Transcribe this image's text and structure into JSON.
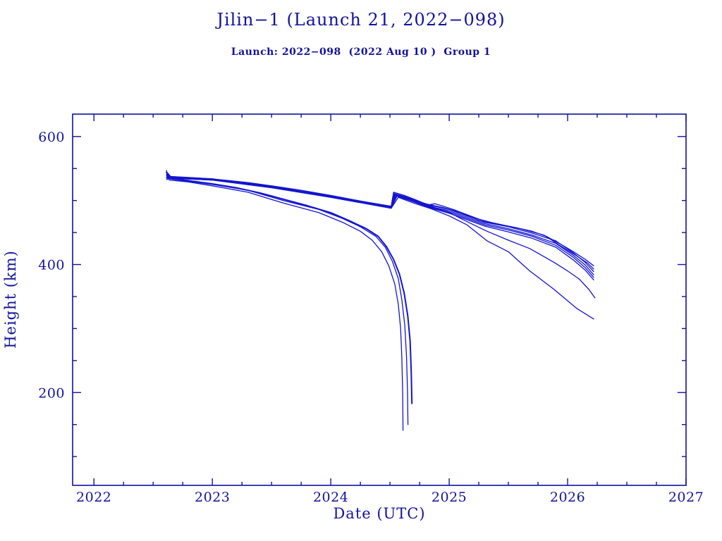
{
  "header": {
    "title": "Jilin−1 (Launch 21, 2022−098)",
    "subtitle": "Launch: 2022−098  (2022 Aug 10 )  Group 1"
  },
  "colors": {
    "background": "#ffffff",
    "text_and_frame": "#12129e",
    "data_line": "#1414d0"
  },
  "chart_data": {
    "type": "line",
    "title": "Jilin−1 (Launch 21, 2022−098)",
    "subtitle": "Launch: 2022−098  (2022 Aug 10 )  Group 1",
    "xlabel": "Date (UTC)",
    "ylabel": "Height (km)",
    "x_range": [
      2021.82,
      2027.0
    ],
    "y_range": [
      55,
      635
    ],
    "x_major_ticks": [
      2022,
      2023,
      2024,
      2025,
      2026,
      2027
    ],
    "x_minor_step": 0.25,
    "y_major_ticks": [
      200,
      400,
      600
    ],
    "y_minor_step": 50,
    "grid": false,
    "legend": "none",
    "description": "Orbital height decay of Jilin-1 Launch 21 satellites: one sub-group decays and reenters around 2024.6-2024.7; a second sub-group is boosted from ~490 km to ~510 km near 2024.5 and decays to 315-400 km by 2026.2.",
    "series": [
      {
        "name": "boosted-sat-1",
        "weight": 1.3,
        "points": [
          [
            2022.613,
            547
          ],
          [
            2022.62,
            538
          ],
          [
            2022.7,
            537
          ],
          [
            2022.9,
            535
          ],
          [
            2023.1,
            532
          ],
          [
            2023.3,
            528
          ],
          [
            2023.5,
            523
          ],
          [
            2023.75,
            516
          ],
          [
            2024.0,
            508
          ],
          [
            2024.2,
            501
          ],
          [
            2024.35,
            496
          ],
          [
            2024.51,
            491
          ],
          [
            2024.53,
            513
          ],
          [
            2024.62,
            508
          ],
          [
            2024.72,
            501
          ],
          [
            2024.82,
            493
          ],
          [
            2024.88,
            495
          ],
          [
            2024.95,
            491
          ],
          [
            2025.05,
            485
          ],
          [
            2025.15,
            478
          ],
          [
            2025.25,
            471
          ],
          [
            2025.35,
            466
          ],
          [
            2025.45,
            462
          ],
          [
            2025.58,
            457
          ],
          [
            2025.7,
            452
          ],
          [
            2025.82,
            444
          ],
          [
            2025.95,
            431
          ],
          [
            2026.05,
            420
          ],
          [
            2026.15,
            408
          ],
          [
            2026.22,
            398
          ]
        ]
      },
      {
        "name": "boosted-sat-2",
        "weight": 1.3,
        "points": [
          [
            2022.613,
            545
          ],
          [
            2022.65,
            537
          ],
          [
            2023.0,
            534
          ],
          [
            2023.5,
            522
          ],
          [
            2024.0,
            507
          ],
          [
            2024.51,
            490
          ],
          [
            2024.535,
            511
          ],
          [
            2024.65,
            505
          ],
          [
            2024.8,
            495
          ],
          [
            2024.95,
            489
          ],
          [
            2025.1,
            481
          ],
          [
            2025.25,
            469
          ],
          [
            2025.4,
            463
          ],
          [
            2025.6,
            456
          ],
          [
            2025.8,
            446
          ],
          [
            2025.95,
            428
          ],
          [
            2026.08,
            413
          ],
          [
            2026.17,
            402
          ],
          [
            2026.22,
            393
          ]
        ]
      },
      {
        "name": "boosted-sat-3",
        "weight": 1.3,
        "points": [
          [
            2022.613,
            543
          ],
          [
            2022.65,
            536
          ],
          [
            2023.0,
            533
          ],
          [
            2023.5,
            522
          ],
          [
            2024.0,
            507
          ],
          [
            2024.51,
            490
          ],
          [
            2024.54,
            510
          ],
          [
            2024.68,
            502
          ],
          [
            2024.85,
            492
          ],
          [
            2025.0,
            486
          ],
          [
            2025.15,
            476
          ],
          [
            2025.3,
            466
          ],
          [
            2025.5,
            459
          ],
          [
            2025.7,
            449
          ],
          [
            2025.9,
            437
          ],
          [
            2026.05,
            418
          ],
          [
            2026.15,
            403
          ],
          [
            2026.22,
            389
          ]
        ]
      },
      {
        "name": "boosted-sat-4",
        "weight": 1.3,
        "points": [
          [
            2022.613,
            541
          ],
          [
            2022.65,
            536
          ],
          [
            2023.0,
            533
          ],
          [
            2023.5,
            521
          ],
          [
            2024.0,
            506
          ],
          [
            2024.51,
            489
          ],
          [
            2024.545,
            509
          ],
          [
            2024.7,
            500
          ],
          [
            2024.85,
            490
          ],
          [
            2025.0,
            484
          ],
          [
            2025.15,
            474
          ],
          [
            2025.3,
            464
          ],
          [
            2025.5,
            456
          ],
          [
            2025.7,
            446
          ],
          [
            2025.9,
            433
          ],
          [
            2026.05,
            414
          ],
          [
            2026.15,
            399
          ],
          [
            2026.22,
            384
          ]
        ]
      },
      {
        "name": "boosted-sat-5",
        "weight": 1.3,
        "points": [
          [
            2022.613,
            539
          ],
          [
            2022.65,
            535
          ],
          [
            2023.0,
            532
          ],
          [
            2023.5,
            521
          ],
          [
            2024.0,
            506
          ],
          [
            2024.51,
            489
          ],
          [
            2024.55,
            508
          ],
          [
            2024.7,
            499
          ],
          [
            2024.85,
            489
          ],
          [
            2025.0,
            482
          ],
          [
            2025.15,
            472
          ],
          [
            2025.3,
            462
          ],
          [
            2025.5,
            454
          ],
          [
            2025.7,
            444
          ],
          [
            2025.9,
            430
          ],
          [
            2026.05,
            411
          ],
          [
            2026.15,
            395
          ],
          [
            2026.22,
            380
          ]
        ]
      },
      {
        "name": "boosted-sat-6",
        "weight": 1.3,
        "points": [
          [
            2022.613,
            537
          ],
          [
            2022.65,
            535
          ],
          [
            2023.0,
            532
          ],
          [
            2023.5,
            520
          ],
          [
            2024.0,
            505
          ],
          [
            2024.51,
            488
          ],
          [
            2024.555,
            507
          ],
          [
            2024.7,
            498
          ],
          [
            2024.85,
            488
          ],
          [
            2025.0,
            480
          ],
          [
            2025.15,
            470
          ],
          [
            2025.3,
            460
          ],
          [
            2025.5,
            451
          ],
          [
            2025.7,
            441
          ],
          [
            2025.9,
            427
          ],
          [
            2026.05,
            407
          ],
          [
            2026.15,
            391
          ],
          [
            2026.22,
            376
          ]
        ]
      },
      {
        "name": "boosted-sat-7",
        "weight": 1.3,
        "points": [
          [
            2022.613,
            535
          ],
          [
            2022.65,
            536
          ],
          [
            2023.0,
            533
          ],
          [
            2023.5,
            521
          ],
          [
            2024.0,
            506
          ],
          [
            2024.51,
            489
          ],
          [
            2024.56,
            507
          ],
          [
            2024.7,
            499
          ],
          [
            2024.85,
            491
          ],
          [
            2025.0,
            481
          ],
          [
            2025.15,
            467
          ],
          [
            2025.32,
            452
          ],
          [
            2025.5,
            438
          ],
          [
            2025.68,
            425
          ],
          [
            2025.88,
            404
          ],
          [
            2026.0,
            390
          ],
          [
            2026.1,
            377
          ],
          [
            2026.18,
            361
          ],
          [
            2026.23,
            348
          ]
        ]
      },
      {
        "name": "boosted-sat-8",
        "weight": 1.3,
        "points": [
          [
            2022.613,
            533
          ],
          [
            2022.65,
            535
          ],
          [
            2023.0,
            532
          ],
          [
            2023.5,
            520
          ],
          [
            2024.0,
            505
          ],
          [
            2024.51,
            488
          ],
          [
            2024.57,
            505
          ],
          [
            2024.7,
            496
          ],
          [
            2024.85,
            487
          ],
          [
            2025.0,
            476
          ],
          [
            2025.15,
            462
          ],
          [
            2025.32,
            437
          ],
          [
            2025.5,
            420
          ],
          [
            2025.68,
            390
          ],
          [
            2025.88,
            362
          ],
          [
            2026.08,
            331
          ],
          [
            2026.22,
            315
          ]
        ]
      },
      {
        "name": "reentry-sat-1",
        "weight": 1.3,
        "points": [
          [
            2022.613,
            536
          ],
          [
            2022.64,
            532
          ],
          [
            2022.8,
            529
          ],
          [
            2023.0,
            523
          ],
          [
            2023.3,
            513
          ],
          [
            2023.6,
            496
          ],
          [
            2023.9,
            481
          ],
          [
            2024.1,
            466
          ],
          [
            2024.25,
            452
          ],
          [
            2024.35,
            438
          ],
          [
            2024.43,
            420
          ],
          [
            2024.49,
            398
          ],
          [
            2024.54,
            370
          ],
          [
            2024.57,
            338
          ],
          [
            2024.59,
            300
          ],
          [
            2024.6,
            255
          ],
          [
            2024.607,
            200
          ],
          [
            2024.61,
            141
          ]
        ]
      },
      {
        "name": "reentry-sat-2",
        "weight": 1.3,
        "points": [
          [
            2022.613,
            540
          ],
          [
            2022.64,
            534
          ],
          [
            2023.0,
            525
          ],
          [
            2023.3,
            516
          ],
          [
            2023.6,
            500
          ],
          [
            2023.9,
            486
          ],
          [
            2024.1,
            472
          ],
          [
            2024.25,
            459
          ],
          [
            2024.38,
            444
          ],
          [
            2024.46,
            427
          ],
          [
            2024.52,
            405
          ],
          [
            2024.57,
            378
          ],
          [
            2024.6,
            345
          ],
          [
            2024.625,
            305
          ],
          [
            2024.64,
            255
          ],
          [
            2024.648,
            200
          ],
          [
            2024.652,
            150
          ]
        ]
      },
      {
        "name": "reentry-sat-3",
        "weight": 2.0,
        "points": [
          [
            2022.613,
            544
          ],
          [
            2022.64,
            535
          ],
          [
            2022.8,
            531
          ],
          [
            2023.0,
            526
          ],
          [
            2023.2,
            520
          ],
          [
            2023.4,
            512
          ],
          [
            2023.6,
            502
          ],
          [
            2023.8,
            492
          ],
          [
            2024.0,
            481
          ],
          [
            2024.15,
            469
          ],
          [
            2024.3,
            456
          ],
          [
            2024.4,
            444
          ],
          [
            2024.47,
            428
          ],
          [
            2024.53,
            408
          ],
          [
            2024.58,
            385
          ],
          [
            2024.62,
            355
          ],
          [
            2024.65,
            320
          ],
          [
            2024.67,
            280
          ],
          [
            2024.68,
            230
          ],
          [
            2024.685,
            183
          ]
        ]
      }
    ]
  }
}
